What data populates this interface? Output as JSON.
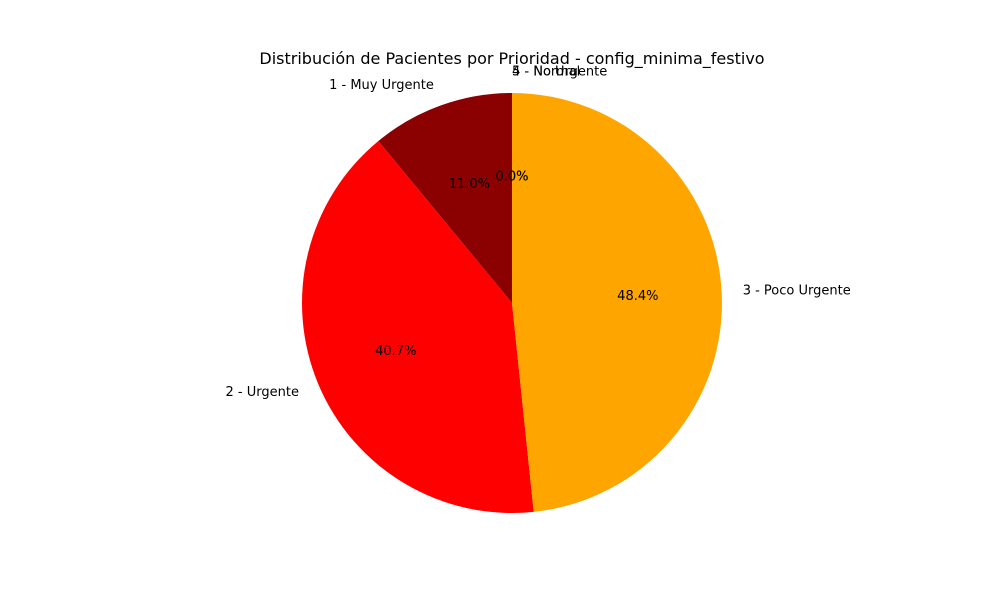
{
  "chart_data": {
    "type": "pie",
    "title": "Distribución de Pacientes por Prioridad - config_minima_festivo",
    "start_angle_deg": 90,
    "direction": "counterclockwise",
    "slices": [
      {
        "label": "1 - Muy Urgente",
        "value": 11.0,
        "pct_label": "11.0%",
        "color": "#8B0000"
      },
      {
        "label": "2 - Urgente",
        "value": 40.7,
        "pct_label": "40.7%",
        "color": "#FF0000"
      },
      {
        "label": "3 - Poco Urgente",
        "value": 48.4,
        "pct_label": "48.4%",
        "color": "#FFA500"
      },
      {
        "label": "4 - Normal",
        "value": 0.0,
        "pct_label": "0.0%",
        "color": "#FFFF00"
      },
      {
        "label": "5 - No Urgente",
        "value": 0.0,
        "pct_label": "0.0%",
        "color": "#008000"
      }
    ]
  }
}
